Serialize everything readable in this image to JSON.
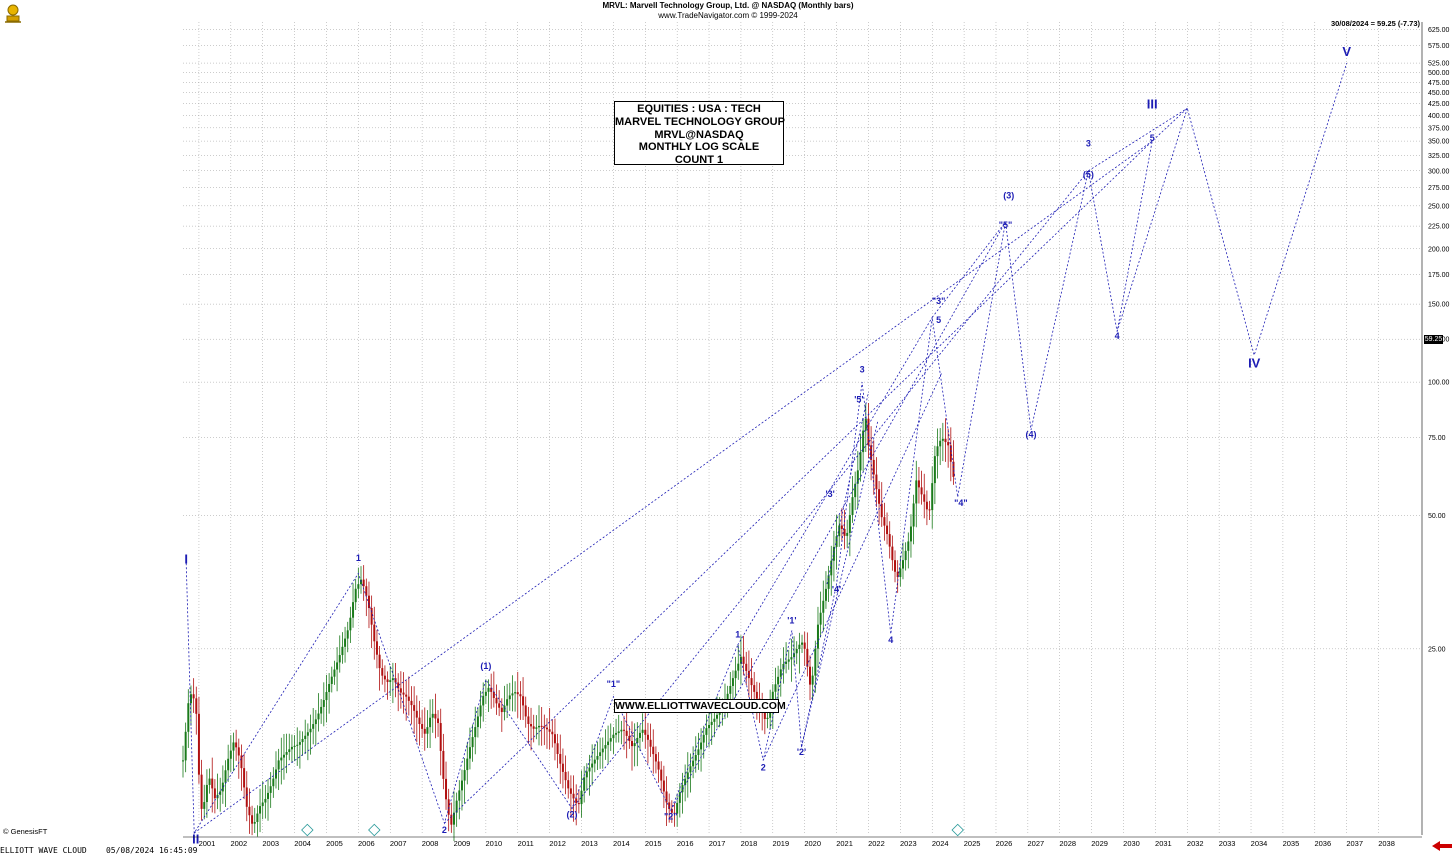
{
  "header": {
    "title": "MRVL:  Marvell Technology Group, Ltd. @ NASDAQ  (Monthly bars)",
    "subtitle": "www.TradeNavigator.com © 1999-2024"
  },
  "last_price_label": "30/08/2024 = 59.25 (-7.73)",
  "price_tag": "59.25",
  "info_box": [
    "EQUITIES : USA : TECH",
    "MARVEL TECHNOLOGY GROUP",
    "MRVL@NASDAQ",
    "MONTHLY LOG SCALE",
    "COUNT 1"
  ],
  "url_box": "WWW.ELLIOTTWAVECLOUD.COM",
  "copyright": "© GenesisFT",
  "footer": "ELLIOTT WAVE CLOUD    05/08/2024 16:45:09",
  "colors": {
    "wave": "#1c1cb4",
    "bull": "#1a7a1a",
    "bear": "#b01010",
    "grid": "#9a9a9a"
  },
  "chart_data": {
    "type": "candlestick",
    "scale": "log",
    "timeframe": "Monthly bars",
    "ylim": [
      9.5,
      650
    ],
    "xlim": [
      2000.5,
      2039.3
    ],
    "grid": true,
    "y_ticks": [
      25,
      50,
      75,
      100,
      125,
      150,
      175,
      200,
      225,
      250,
      275,
      300,
      325,
      350,
      375,
      400,
      425,
      450,
      475,
      500,
      525,
      575,
      625
    ],
    "y_tick_labels": [
      "25.00",
      "50.00",
      "75.00",
      "100.00",
      "125.00",
      "150.00",
      "175.00",
      "200.00",
      "225.00",
      "250.00",
      "275.00",
      "300.00",
      "325.00",
      "350.00",
      "375.00",
      "400.00",
      "425.00",
      "450.00",
      "475.00",
      "500.00",
      "525.00",
      "575.00",
      "625.00"
    ],
    "x_tick_labels": [
      "2001",
      "2002",
      "2003",
      "2004",
      "2005",
      "2006",
      "2007",
      "2008",
      "2009",
      "2010",
      "2011",
      "2012",
      "2013",
      "2014",
      "2015",
      "2016",
      "2017",
      "2018",
      "2019",
      "2020",
      "2021",
      "2022",
      "2023",
      "2024",
      "2025",
      "2026",
      "2027",
      "2028",
      "2029",
      "2030",
      "2031",
      "2032",
      "2033",
      "2034",
      "2035",
      "2036",
      "2037",
      "2038"
    ],
    "price_path": [
      [
        2000.5,
        14
      ],
      [
        2000.7,
        20
      ],
      [
        2000.9,
        19
      ],
      [
        2001.0,
        13
      ],
      [
        2001.1,
        10.5
      ],
      [
        2001.3,
        13
      ],
      [
        2001.5,
        11.5
      ],
      [
        2001.7,
        12
      ],
      [
        2001.9,
        14
      ],
      [
        2002.1,
        15.5
      ],
      [
        2002.3,
        14
      ],
      [
        2002.5,
        11
      ],
      [
        2002.7,
        9.9
      ],
      [
        2002.9,
        11
      ],
      [
        2003.1,
        11.5
      ],
      [
        2003.3,
        12.5
      ],
      [
        2003.5,
        14
      ],
      [
        2003.7,
        14.5
      ],
      [
        2003.9,
        15
      ],
      [
        2004.1,
        15.2
      ],
      [
        2004.3,
        15.8
      ],
      [
        2004.5,
        16.5
      ],
      [
        2004.7,
        17.5
      ],
      [
        2004.9,
        19
      ],
      [
        2005.1,
        21
      ],
      [
        2005.4,
        24
      ],
      [
        2005.7,
        28
      ],
      [
        2005.9,
        34
      ],
      [
        2006.1,
        36
      ],
      [
        2006.3,
        32
      ],
      [
        2006.5,
        26
      ],
      [
        2006.7,
        22
      ],
      [
        2006.9,
        21
      ],
      [
        2007.1,
        21.5
      ],
      [
        2007.3,
        20
      ],
      [
        2007.5,
        19.5
      ],
      [
        2007.7,
        18.5
      ],
      [
        2007.9,
        17
      ],
      [
        2008.1,
        16
      ],
      [
        2008.3,
        18
      ],
      [
        2008.5,
        17
      ],
      [
        2008.7,
        12
      ],
      [
        2008.9,
        9.9
      ],
      [
        2009.1,
        11.5
      ],
      [
        2009.3,
        13
      ],
      [
        2009.5,
        15
      ],
      [
        2009.7,
        17
      ],
      [
        2009.9,
        19.5
      ],
      [
        2010.1,
        20.5
      ],
      [
        2010.3,
        19
      ],
      [
        2010.5,
        18
      ],
      [
        2010.7,
        19.5
      ],
      [
        2010.9,
        20
      ],
      [
        2011.1,
        19.5
      ],
      [
        2011.3,
        17
      ],
      [
        2011.5,
        16.5
      ],
      [
        2011.7,
        16.8
      ],
      [
        2011.9,
        16.5
      ],
      [
        2012.1,
        16
      ],
      [
        2012.3,
        14
      ],
      [
        2012.6,
        12
      ],
      [
        2012.9,
        11
      ],
      [
        2013.1,
        13
      ],
      [
        2013.4,
        14
      ],
      [
        2013.7,
        15
      ],
      [
        2014.0,
        16
      ],
      [
        2014.3,
        16.5
      ],
      [
        2014.6,
        15
      ],
      [
        2014.9,
        16.5
      ],
      [
        2015.1,
        15.5
      ],
      [
        2015.4,
        13.5
      ],
      [
        2015.7,
        11
      ],
      [
        2015.9,
        10.5
      ],
      [
        2016.1,
        12
      ],
      [
        2016.4,
        13.5
      ],
      [
        2016.7,
        15
      ],
      [
        2016.9,
        16.5
      ],
      [
        2017.2,
        17.5
      ],
      [
        2017.5,
        19
      ],
      [
        2017.8,
        22
      ],
      [
        2018.0,
        24
      ],
      [
        2018.3,
        21
      ],
      [
        2018.6,
        18.5
      ],
      [
        2018.8,
        17
      ],
      [
        2019.0,
        20
      ],
      [
        2019.3,
        23
      ],
      [
        2019.6,
        24
      ],
      [
        2019.9,
        26
      ],
      [
        2020.0,
        25
      ],
      [
        2020.2,
        20
      ],
      [
        2020.4,
        28
      ],
      [
        2020.7,
        35
      ],
      [
        2020.9,
        42
      ],
      [
        2021.1,
        48
      ],
      [
        2021.3,
        44
      ],
      [
        2021.5,
        55
      ],
      [
        2021.7,
        65
      ],
      [
        2021.9,
        85
      ],
      [
        2022.0,
        72
      ],
      [
        2022.2,
        60
      ],
      [
        2022.4,
        50
      ],
      [
        2022.6,
        45
      ],
      [
        2022.8,
        38
      ],
      [
        2022.9,
        36
      ],
      [
        2023.1,
        40
      ],
      [
        2023.3,
        45
      ],
      [
        2023.5,
        60
      ],
      [
        2023.7,
        55
      ],
      [
        2023.9,
        50
      ],
      [
        2024.1,
        70
      ],
      [
        2024.3,
        75
      ],
      [
        2024.5,
        72
      ],
      [
        2024.6,
        65
      ],
      [
        2024.7,
        59.25
      ]
    ],
    "wave_lines": [
      [
        [
          2000.6,
          39
        ],
        [
          2000.85,
          9.6
        ],
        [
          2006.0,
          37
        ],
        [
          2008.7,
          10.1
        ],
        [
          2010.0,
          21.3
        ],
        [
          2012.7,
          10.9
        ],
        [
          2014.0,
          19.5
        ],
        [
          2015.8,
          10.8
        ],
        [
          2017.9,
          25.5
        ],
        [
          2018.7,
          14
        ],
        [
          2019.6,
          27.5
        ],
        [
          2019.9,
          15
        ],
        [
          2021.0,
          35
        ],
        [
          2021.8,
          100
        ],
        [
          2022.7,
          27
        ],
        [
          2024.0,
          140
        ],
        [
          2024.8,
          55
        ],
        [
          2026.3,
          230
        ],
        [
          2027.1,
          78
        ],
        [
          2028.9,
          300
        ],
        [
          2029.8,
          130
        ],
        [
          2030.9,
          350
        ],
        [
          2032.0,
          415
        ],
        [
          2034.1,
          115
        ],
        [
          2037.0,
          525
        ]
      ],
      [
        [
          2000.85,
          9.6
        ],
        [
          2030.9,
          350
        ]
      ],
      [
        [
          2008.7,
          10.1
        ],
        [
          2030.9,
          350
        ]
      ],
      [
        [
          2012.7,
          10.9
        ],
        [
          2028.9,
          300
        ]
      ],
      [
        [
          2015.8,
          10.8
        ],
        [
          2026.3,
          230
        ]
      ],
      [
        [
          2017.9,
          25.5
        ],
        [
          2024.0,
          140
        ]
      ],
      [
        [
          2018.7,
          14
        ],
        [
          2024.3,
          105
        ]
      ],
      [
        [
          2019.9,
          15
        ],
        [
          2022.3,
          82
        ]
      ],
      [
        [
          2020.7,
          35
        ],
        [
          2022.0,
          95
        ]
      ],
      [
        [
          2024.0,
          140
        ],
        [
          2026.3,
          230
        ]
      ],
      [
        [
          2028.9,
          300
        ],
        [
          2032.0,
          415
        ]
      ],
      [
        [
          2029.8,
          130
        ],
        [
          2032.0,
          415
        ]
      ]
    ],
    "wave_labels": [
      {
        "text": "I",
        "x": 2000.6,
        "y": 39,
        "bold": true,
        "size": 13
      },
      {
        "text": "II",
        "x": 2000.9,
        "y": 9.1,
        "bold": true,
        "size": 13
      },
      {
        "text": "1",
        "x": 2006.0,
        "y": 39.5
      },
      {
        "text": "2",
        "x": 2008.7,
        "y": 9.6
      },
      {
        "text": "(1)",
        "x": 2010.0,
        "y": 22.5
      },
      {
        "text": "(2)",
        "x": 2012.7,
        "y": 10.4
      },
      {
        "text": "\"1\"",
        "x": 2014.0,
        "y": 20.5
      },
      {
        "text": "\"2\"",
        "x": 2015.8,
        "y": 10.3
      },
      {
        "text": "1",
        "x": 2017.9,
        "y": 26.5
      },
      {
        "text": "2",
        "x": 2018.7,
        "y": 13.3
      },
      {
        "text": "'1'",
        "x": 2019.6,
        "y": 28.5
      },
      {
        "text": "'2'",
        "x": 2019.9,
        "y": 14.4
      },
      {
        "text": "'3'",
        "x": 2020.8,
        "y": 55
      },
      {
        "text": "'4'",
        "x": 2021.0,
        "y": 33.5
      },
      {
        "text": "'5'",
        "x": 2021.7,
        "y": 90
      },
      {
        "text": "3",
        "x": 2021.8,
        "y": 105
      },
      {
        "text": "4",
        "x": 2022.7,
        "y": 25.8
      },
      {
        "text": "\"3\"",
        "x": 2024.2,
        "y": 150
      },
      {
        "text": "5",
        "x": 2024.2,
        "y": 136
      },
      {
        "text": "\"4\"",
        "x": 2024.9,
        "y": 52.5
      },
      {
        "text": "\"5\"",
        "x": 2026.3,
        "y": 223
      },
      {
        "text": "(3)",
        "x": 2026.4,
        "y": 260
      },
      {
        "text": "(4)",
        "x": 2027.1,
        "y": 75
      },
      {
        "text": "(5)",
        "x": 2028.9,
        "y": 290
      },
      {
        "text": "3",
        "x": 2028.9,
        "y": 340
      },
      {
        "text": "4",
        "x": 2029.8,
        "y": 125
      },
      {
        "text": "5",
        "x": 2030.9,
        "y": 350
      },
      {
        "text": "III",
        "x": 2030.9,
        "y": 415,
        "bold": true,
        "size": 13
      },
      {
        "text": "IV",
        "x": 2034.1,
        "y": 108,
        "bold": true,
        "size": 13
      },
      {
        "text": "V",
        "x": 2037.0,
        "y": 545,
        "bold": true,
        "size": 13
      }
    ]
  }
}
